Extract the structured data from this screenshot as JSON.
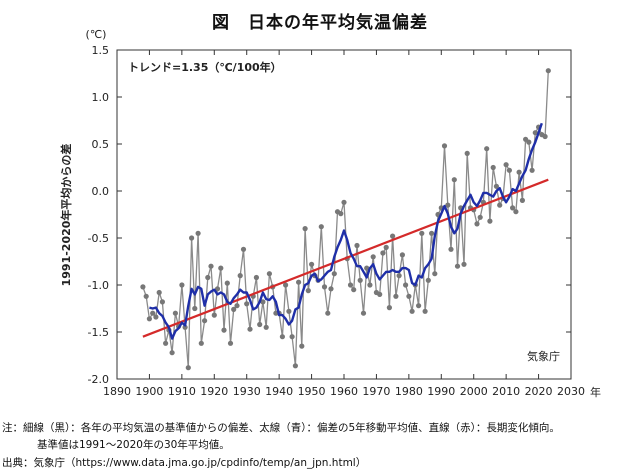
{
  "title": "図　日本の年平均気温偏差",
  "notes": {
    "line1": "注：細線（黒）：各年の平均気温の基準値からの偏差、太線（青）：偏差の5年移動平均値、直線（赤）：長期変化傾向。",
    "line2": "基準値は1991〜2020年の30年平均値。",
    "source": "出典：気象庁（https://www.data.jma.go.jp/cpdinfo/temp/an_jpn.html）"
  },
  "colors": {
    "annual": "#8a8a8a",
    "annual_marker": "#777777",
    "moving_avg": "#1f2fa8",
    "trend": "#d42a2a",
    "axes": "#333333"
  },
  "chart_data": {
    "type": "line",
    "title": "図　日本の年平均気温偏差",
    "ylabel": "1991-2020年平均からの差",
    "y_unit": "(℃)",
    "x_unit": "年",
    "xlim": [
      1890,
      2030
    ],
    "ylim": [
      -2.0,
      1.5
    ],
    "x_ticks": [
      1890,
      1900,
      1910,
      1920,
      1930,
      1940,
      1950,
      1960,
      1970,
      1980,
      1990,
      2000,
      2010,
      2020,
      2030
    ],
    "y_ticks": [
      -2.0,
      -1.5,
      -1.0,
      -0.5,
      0.0,
      0.5,
      1.0,
      1.5
    ],
    "grid": false,
    "legend": "none",
    "annotation_trend": "トレンド=1.35（℃/100年）",
    "annotation_source": "気象庁",
    "series": [
      {
        "key": "annual",
        "style": "thin-gray-with-markers",
        "x": [
          1898,
          1899,
          1900,
          1901,
          1902,
          1903,
          1904,
          1905,
          1906,
          1907,
          1908,
          1909,
          1910,
          1911,
          1912,
          1913,
          1914,
          1915,
          1916,
          1917,
          1918,
          1919,
          1920,
          1921,
          1922,
          1923,
          1924,
          1925,
          1926,
          1927,
          1928,
          1929,
          1930,
          1931,
          1932,
          1933,
          1934,
          1935,
          1936,
          1937,
          1938,
          1939,
          1940,
          1941,
          1942,
          1943,
          1944,
          1945,
          1946,
          1947,
          1948,
          1949,
          1950,
          1951,
          1952,
          1953,
          1954,
          1955,
          1956,
          1957,
          1958,
          1959,
          1960,
          1961,
          1962,
          1963,
          1964,
          1965,
          1966,
          1967,
          1968,
          1969,
          1970,
          1971,
          1972,
          1973,
          1974,
          1975,
          1976,
          1977,
          1978,
          1979,
          1980,
          1981,
          1982,
          1983,
          1984,
          1985,
          1986,
          1987,
          1988,
          1989,
          1990,
          1991,
          1992,
          1993,
          1994,
          1995,
          1996,
          1997,
          1998,
          1999,
          2000,
          2001,
          2002,
          2003,
          2004,
          2005,
          2006,
          2007,
          2008,
          2009,
          2010,
          2011,
          2012,
          2013,
          2014,
          2015,
          2016,
          2017,
          2018,
          2019,
          2020,
          2021,
          2022,
          2023
        ],
        "values": [
          -1.02,
          -1.12,
          -1.36,
          -1.3,
          -1.34,
          -1.08,
          -1.18,
          -1.62,
          -1.48,
          -1.72,
          -1.3,
          -1.44,
          -1.0,
          -1.45,
          -1.88,
          -0.5,
          -1.25,
          -0.45,
          -1.62,
          -1.38,
          -0.92,
          -0.8,
          -1.32,
          -1.04,
          -0.82,
          -1.48,
          -0.98,
          -1.62,
          -1.26,
          -1.22,
          -0.9,
          -0.62,
          -1.2,
          -1.47,
          -1.12,
          -0.92,
          -1.42,
          -1.18,
          -1.45,
          -0.88,
          -1.02,
          -1.3,
          -1.3,
          -1.55,
          -1.0,
          -1.28,
          -1.55,
          -1.86,
          -0.97,
          -1.65,
          -0.4,
          -1.06,
          -0.78,
          -0.9,
          -0.95,
          -0.38,
          -1.02,
          -1.3,
          -1.04,
          -0.88,
          -0.22,
          -0.24,
          -0.12,
          -0.72,
          -1.0,
          -1.05,
          -0.58,
          -0.95,
          -1.3,
          -0.82,
          -1.0,
          -0.7,
          -1.08,
          -1.1,
          -0.66,
          -0.6,
          -1.24,
          -0.48,
          -1.12,
          -0.9,
          -0.68,
          -1.0,
          -1.12,
          -1.28,
          -1.0,
          -1.22,
          -0.45,
          -1.28,
          -0.95,
          -0.45,
          -0.88,
          -0.25,
          -0.18,
          0.48,
          -0.15,
          -0.62,
          0.12,
          -0.8,
          -0.18,
          -0.78,
          0.4,
          -0.18,
          -0.2,
          -0.35,
          -0.28,
          -0.12,
          0.45,
          -0.32,
          0.25,
          0.05,
          -0.15,
          -0.08,
          0.28,
          0.22,
          -0.18,
          -0.22,
          0.2,
          -0.1,
          0.55,
          0.52,
          0.22,
          0.62,
          0.68,
          0.6,
          0.58,
          1.28
        ],
        "color": "#8a8a8a"
      },
      {
        "key": "moving_avg",
        "style": "thick-blue",
        "x": [
          1900,
          1901,
          1902,
          1903,
          1904,
          1905,
          1906,
          1907,
          1908,
          1909,
          1910,
          1911,
          1912,
          1913,
          1914,
          1915,
          1916,
          1917,
          1918,
          1919,
          1920,
          1921,
          1922,
          1923,
          1924,
          1925,
          1926,
          1927,
          1928,
          1929,
          1930,
          1931,
          1932,
          1933,
          1934,
          1935,
          1936,
          1937,
          1938,
          1939,
          1940,
          1941,
          1942,
          1943,
          1944,
          1945,
          1946,
          1947,
          1948,
          1949,
          1950,
          1951,
          1952,
          1953,
          1954,
          1955,
          1956,
          1957,
          1958,
          1959,
          1960,
          1961,
          1962,
          1963,
          1964,
          1965,
          1966,
          1967,
          1968,
          1969,
          1970,
          1971,
          1972,
          1973,
          1974,
          1975,
          1976,
          1977,
          1978,
          1979,
          1980,
          1981,
          1982,
          1983,
          1984,
          1985,
          1986,
          1987,
          1988,
          1989,
          1990,
          1991,
          1992,
          1993,
          1994,
          1995,
          1996,
          1997,
          1998,
          1999,
          2000,
          2001,
          2002,
          2003,
          2004,
          2005,
          2006,
          2007,
          2008,
          2009,
          2010,
          2011,
          2012,
          2013,
          2014,
          2015,
          2016,
          2017,
          2018,
          2019,
          2020,
          2021
        ],
        "values": [
          -1.24,
          -1.25,
          -1.24,
          -1.3,
          -1.33,
          -1.4,
          -1.45,
          -1.57,
          -1.49,
          -1.46,
          -1.4,
          -1.43,
          -1.22,
          -1.04,
          -1.1,
          -1.02,
          -1.04,
          -1.22,
          -1.1,
          -1.07,
          -1.05,
          -1.1,
          -1.08,
          -1.1,
          -1.18,
          -1.2,
          -1.14,
          -1.1,
          -1.05,
          -1.08,
          -1.08,
          -1.16,
          -1.26,
          -1.24,
          -1.18,
          -1.08,
          -1.15,
          -1.16,
          -1.12,
          -1.18,
          -1.32,
          -1.32,
          -1.36,
          -1.42,
          -1.38,
          -1.26,
          -1.24,
          -1.1,
          -1.0,
          -0.98,
          -0.9,
          -0.88,
          -0.96,
          -0.94,
          -0.9,
          -0.86,
          -0.84,
          -0.7,
          -0.6,
          -0.52,
          -0.42,
          -0.52,
          -0.66,
          -0.72,
          -0.8,
          -0.8,
          -0.86,
          -0.92,
          -0.82,
          -0.78,
          -0.88,
          -0.94,
          -0.9,
          -0.86,
          -0.86,
          -0.84,
          -0.86,
          -0.86,
          -0.82,
          -0.82,
          -0.84,
          -0.98,
          -1.0,
          -0.9,
          -0.92,
          -0.82,
          -0.78,
          -0.72,
          -0.48,
          -0.32,
          -0.24,
          -0.16,
          -0.24,
          -0.38,
          -0.45,
          -0.4,
          -0.24,
          -0.16,
          -0.1,
          -0.04,
          -0.12,
          -0.16,
          -0.1,
          -0.02,
          -0.02,
          -0.04,
          -0.06,
          0.0,
          0.03,
          -0.06,
          -0.12,
          -0.06,
          0.02,
          0.0,
          0.08,
          0.16,
          0.22,
          0.34,
          0.44,
          0.52,
          0.62,
          0.72
        ],
        "color": "#1f2fa8"
      },
      {
        "key": "trend",
        "style": "straight-red",
        "x": [
          1898,
          2023
        ],
        "values": [
          -1.55,
          0.12
        ],
        "color": "#d42a2a"
      }
    ]
  }
}
